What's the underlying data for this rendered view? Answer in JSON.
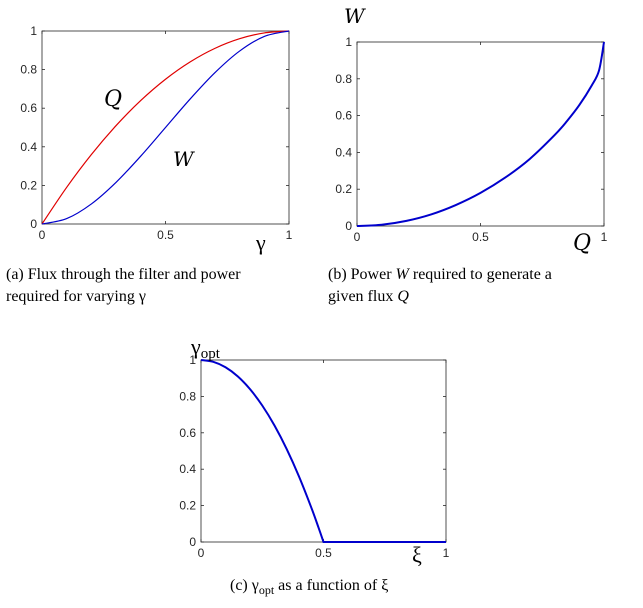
{
  "chart_data": [
    {
      "type": "line",
      "xlabel": "γ",
      "xlim": [
        0,
        1
      ],
      "ylim": [
        0,
        1
      ],
      "xticks": [
        "0",
        "0.5",
        "1"
      ],
      "yticks": [
        "0",
        "0.2",
        "0.4",
        "0.6",
        "0.8",
        "1"
      ],
      "series": [
        {
          "name": "Q",
          "color": "#e00000",
          "x": [
            0,
            0.1,
            0.2,
            0.3,
            0.4,
            0.5,
            0.6,
            0.7,
            0.8,
            0.9,
            1
          ],
          "y": [
            0,
            0.19,
            0.36,
            0.51,
            0.64,
            0.75,
            0.84,
            0.91,
            0.96,
            0.99,
            1
          ]
        },
        {
          "name": "W",
          "color": "#0000cc",
          "x": [
            0,
            0.1,
            0.2,
            0.3,
            0.4,
            0.5,
            0.6,
            0.7,
            0.8,
            0.9,
            1
          ],
          "y": [
            0,
            0.028,
            0.104,
            0.216,
            0.352,
            0.5,
            0.648,
            0.784,
            0.896,
            0.972,
            1
          ]
        }
      ],
      "caption": "(a) Flux through the filter and power required for varying γ"
    },
    {
      "type": "line",
      "xlabel": "Q",
      "ylabel": "W",
      "xlim": [
        0,
        1
      ],
      "ylim": [
        0,
        1
      ],
      "xticks": [
        "0",
        "0.5",
        "1"
      ],
      "yticks": [
        "0",
        "0.2",
        "0.4",
        "0.6",
        "0.8",
        "1"
      ],
      "series": [
        {
          "color": "#0000cc",
          "x": [
            0,
            0.1,
            0.2,
            0.3,
            0.4,
            0.5,
            0.6,
            0.7,
            0.8,
            0.85,
            0.9,
            0.95,
            0.98,
            1
          ],
          "y": [
            0,
            0.007,
            0.028,
            0.063,
            0.114,
            0.18,
            0.263,
            0.365,
            0.494,
            0.57,
            0.657,
            0.763,
            0.846,
            1
          ]
        }
      ],
      "caption": "(b) Power W required to generate a given flux Q"
    },
    {
      "type": "line",
      "xlabel": "ξ",
      "ylabel": "γopt",
      "xlim": [
        0,
        1
      ],
      "ylim": [
        0,
        1
      ],
      "xticks": [
        "0",
        "0.5",
        "1"
      ],
      "yticks": [
        "0",
        "0.2",
        "0.4",
        "0.6",
        "0.8",
        "1"
      ],
      "series": [
        {
          "color": "#0000cc",
          "x": [
            0,
            0.05,
            0.1,
            0.15,
            0.2,
            0.25,
            0.3,
            0.35,
            0.4,
            0.45,
            0.48,
            0.5,
            0.6,
            0.7,
            0.8,
            0.9,
            1
          ],
          "y": [
            1,
            0.99,
            0.96,
            0.91,
            0.84,
            0.75,
            0.64,
            0.51,
            0.36,
            0.19,
            0.078,
            0,
            0,
            0,
            0,
            0,
            0
          ]
        }
      ],
      "caption": "(c) γopt as a function of ξ"
    }
  ],
  "captions": {
    "a_line1": "(a) Flux through the filter and power",
    "a_line2": "required for varying γ",
    "b_line1_pre": "(b) Power ",
    "b_line1_sym": "W",
    "b_line1_post": " required to generate a",
    "b_line2_pre": "given flux ",
    "b_line2_sym": "Q",
    "c_pre": "(c) γ",
    "c_sub": "opt",
    "c_post": " as a function of ξ"
  }
}
